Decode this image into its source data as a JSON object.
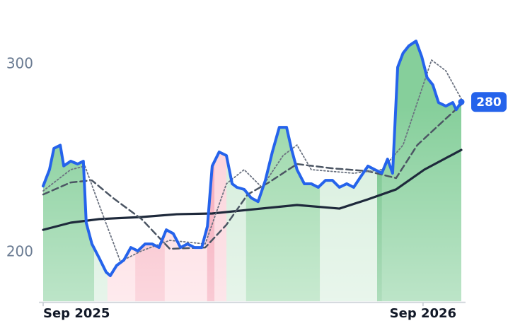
{
  "chart_data": {
    "type": "line",
    "x": [
      0,
      0.2,
      0.34,
      0.54,
      0.65,
      0.87,
      1.09,
      1.27,
      1.36,
      1.54,
      1.77,
      1.99,
      2.12,
      2.32,
      2.55,
      2.77,
      2.99,
      3.22,
      3.44,
      3.66,
      3.89,
      4.11,
      4.34,
      4.56,
      4.78,
      5.01,
      5.19,
      5.34,
      5.56,
      5.79,
      5.97,
      6.12,
      6.35,
      6.57,
      6.79,
      7.02,
      7.24,
      7.46,
      7.69,
      7.84,
      8.02,
      8.25,
      8.47,
      8.69,
      8.92,
      9.14,
      9.36,
      9.59,
      9.81,
      10.03,
      10.26,
      10.48,
      10.7,
      10.88,
      11.04,
      11.2,
      11.37,
      11.55,
      11.78,
      11.96,
      12.13,
      12.31,
      12.49,
      12.72,
      12.94,
      13.05,
      13.21
    ],
    "series": [
      {
        "color": "#2563eb",
        "style": "solid",
        "width": 4,
        "area": true,
        "values": [
          235.3,
          244,
          255.3,
          257,
          246,
          248.5,
          247,
          248.5,
          215.8,
          204.5,
          197,
          189.5,
          187.6,
          193,
          195.9,
          202.6,
          200.8,
          204.5,
          204.5,
          202.6,
          212,
          210,
          202.6,
          204.5,
          202.6,
          202.6,
          213.9,
          245.9,
          253.4,
          251.5,
          236.5,
          234.6,
          233.5,
          229,
          227,
          238.3,
          253.4,
          266.5,
          266.5,
          255.3,
          244,
          236.5,
          236.5,
          234.6,
          238.3,
          238.3,
          234.6,
          236.5,
          234.6,
          240.2,
          245.9,
          244,
          242.1,
          249.6,
          242.1,
          298.5,
          306,
          309.8,
          312.4,
          304.1,
          292.9,
          289.1,
          279.7,
          277.8,
          279.7,
          275.9,
          280
        ]
      },
      {
        "color": "#6b7280",
        "style": "dotted",
        "width": 1.8,
        "x": [
          0,
          0.87,
          1.32,
          1.77,
          2.44,
          3.11,
          4,
          5.12,
          5.79,
          6.35,
          6.91,
          7.58,
          8.02,
          8.47,
          9.81,
          10.7,
          11.37,
          12.27,
          12.72,
          13.21
        ],
        "values": [
          232.7,
          244,
          245.9,
          225.2,
          195.1,
          200.8,
          206.4,
          204.5,
          236.5,
          244,
          234.6,
          251.5,
          257.1,
          244,
          242.1,
          244,
          257.1,
          302.3,
          296.6,
          281.6
        ]
      },
      {
        "color": "#4b5563",
        "style": "dashed",
        "width": 2.5,
        "x": [
          0,
          0.87,
          1.54,
          2.21,
          3.11,
          4,
          5.12,
          5.79,
          6.46,
          7.13,
          8.02,
          9.14,
          10.26,
          11.15,
          11.82,
          12.72,
          13.21
        ],
        "values": [
          230.8,
          237.2,
          238.3,
          228.9,
          217.7,
          201.9,
          202.6,
          214.7,
          230.8,
          237.2,
          247,
          244.7,
          243.2,
          239.5,
          257.1,
          271.1,
          278.6
        ]
      },
      {
        "color": "#1e293b",
        "style": "solid",
        "width": 3.2,
        "x": [
          0,
          0.87,
          1.77,
          3.11,
          4.22,
          5.34,
          6.46,
          8.02,
          9.36,
          10.26,
          11.15,
          12.04,
          13.21
        ],
        "values": [
          212,
          215.8,
          217.7,
          218.8,
          220.3,
          220.7,
          222.6,
          225.2,
          223.3,
          228.2,
          233.5,
          244,
          254.5
        ]
      }
    ],
    "bands": [
      {
        "x0": 0,
        "x1": 1.61,
        "color": "#86cf9b"
      },
      {
        "x0": 1.61,
        "x1": 2.03,
        "color": "#d2ecd9"
      },
      {
        "x0": 2.03,
        "x1": 2.91,
        "color": "#fdd9df"
      },
      {
        "x0": 2.91,
        "x1": 3.84,
        "color": "#f8b6c3"
      },
      {
        "x0": 3.84,
        "x1": 5.18,
        "color": "#fdd9df"
      },
      {
        "x0": 5.18,
        "x1": 5.41,
        "color": "#f49fb1"
      },
      {
        "x0": 5.41,
        "x1": 5.79,
        "color": "#fbd0d8"
      },
      {
        "x0": 5.79,
        "x1": 6.41,
        "color": "#d2ecd9"
      },
      {
        "x0": 6.41,
        "x1": 8.74,
        "color": "#9bd8aa"
      },
      {
        "x0": 8.74,
        "x1": 10.55,
        "color": "#d6eedc"
      },
      {
        "x0": 10.55,
        "x1": 10.7,
        "color": "#6cc184"
      },
      {
        "x0": 10.7,
        "x1": 13.21,
        "color": "#86cf9b"
      }
    ],
    "xlim": [
      0,
      13.21
    ],
    "ylim": [
      174,
      334
    ],
    "xticks": [
      {
        "value": 0,
        "label": "Sep 2025"
      },
      {
        "value": 12,
        "label": "Sep 2026"
      }
    ],
    "yticks": [
      200,
      300
    ]
  }
}
